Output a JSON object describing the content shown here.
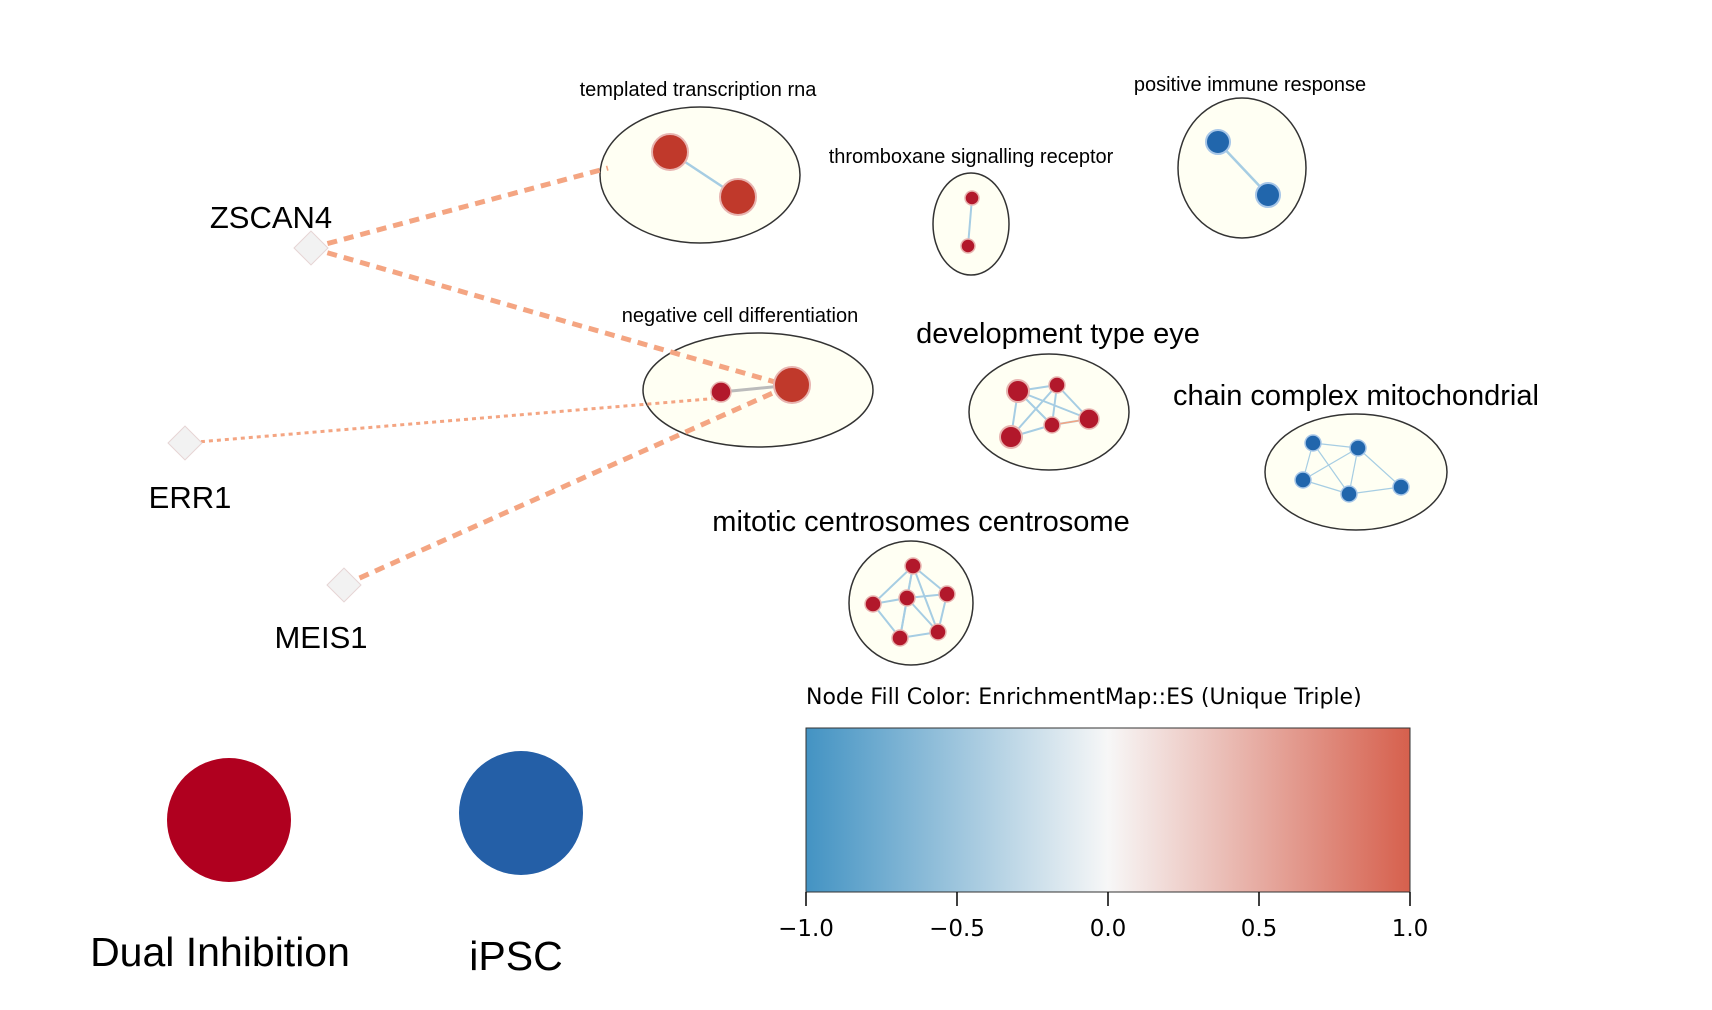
{
  "clusters": [
    {
      "id": "templated",
      "label": "templated transcription rna",
      "color": "#b2182b"
    },
    {
      "id": "thromboxane",
      "label": "thromboxane signalling receptor",
      "color": "#b2182b"
    },
    {
      "id": "immune",
      "label": "positive immune response",
      "color": "#2166ac"
    },
    {
      "id": "negdiff",
      "label": "negative cell differentiation",
      "color": "#b2182b"
    },
    {
      "id": "deveye",
      "label": "development type eye",
      "color": "#b2182b"
    },
    {
      "id": "chain",
      "label": "chain complex mitochondrial",
      "color": "#2166ac"
    },
    {
      "id": "mitotic",
      "label": "mitotic centrosomes centrosome",
      "color": "#b2182b"
    }
  ],
  "transcription_factors": [
    {
      "id": "zscan4",
      "label": "ZSCAN4"
    },
    {
      "id": "err1",
      "label": "ERR1"
    },
    {
      "id": "meis1",
      "label": "MEIS1"
    }
  ],
  "legend": {
    "groups": [
      {
        "label": "Dual Inhibition",
        "color": "#b0001f"
      },
      {
        "label": "iPSC",
        "color": "#245fa7"
      }
    ],
    "colorbar": {
      "title": "Node Fill Color:  EnrichmentMap::ES (Unique Triple)",
      "min": -1.0,
      "max": 1.0,
      "ticks": [
        "−1.0",
        "−0.5",
        "0.0",
        "0.5",
        "1.0"
      ],
      "tick_values": [
        -1.0,
        -0.5,
        0.0,
        0.5,
        1.0
      ],
      "colors": {
        "low": "#4393c3",
        "mid": "#f7f7f7",
        "high": "#d6604d"
      }
    }
  },
  "colors": {
    "cluster_fill": "#fffff3",
    "cluster_stroke": "#333333",
    "edge_within": "#a6cde3",
    "edge_tf": "#f4a582",
    "tf_node": "#f2f2f2"
  }
}
